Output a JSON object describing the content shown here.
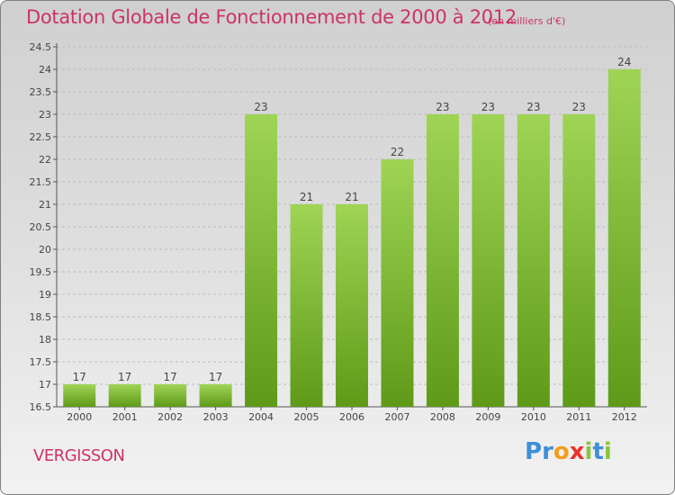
{
  "header": {
    "title": "Dotation Globale de Fonctionnement de 2000 à 2012",
    "unit_note": "(en milliers d'€)"
  },
  "commune": "VERGISSON",
  "logo": {
    "letters": [
      {
        "char": "P",
        "color": "#3f8fd8"
      },
      {
        "char": "r",
        "color": "#3f8fd8"
      },
      {
        "char": "o",
        "color": "#f29d1f"
      },
      {
        "char": "x",
        "color": "#e8342c"
      },
      {
        "char": "i",
        "color": "#8cc43c"
      },
      {
        "char": "t",
        "color": "#3f8fd8"
      },
      {
        "char": "i",
        "color": "#8cc43c"
      }
    ]
  },
  "chart_data": {
    "type": "bar",
    "title": "Dotation Globale de Fonctionnement de 2000 à 2012",
    "subtitle": "(en milliers d'€)",
    "categories": [
      "2000",
      "2001",
      "2002",
      "2003",
      "2004",
      "2005",
      "2006",
      "2007",
      "2008",
      "2009",
      "2010",
      "2011",
      "2012"
    ],
    "values": [
      17,
      17,
      17,
      17,
      23,
      21,
      21,
      22,
      23,
      23,
      23,
      23,
      24
    ],
    "ylim": [
      16.5,
      24.5
    ],
    "yticks": [
      16.5,
      17,
      17.5,
      18,
      18.5,
      19,
      19.5,
      20,
      20.5,
      21,
      21.5,
      22,
      22.5,
      23,
      23.5,
      24,
      24.5
    ],
    "grid": true,
    "bar_color": "#7fbf34",
    "bar_color_light": "#9ad44a",
    "bar_color_dark": "#5f9a1c"
  }
}
